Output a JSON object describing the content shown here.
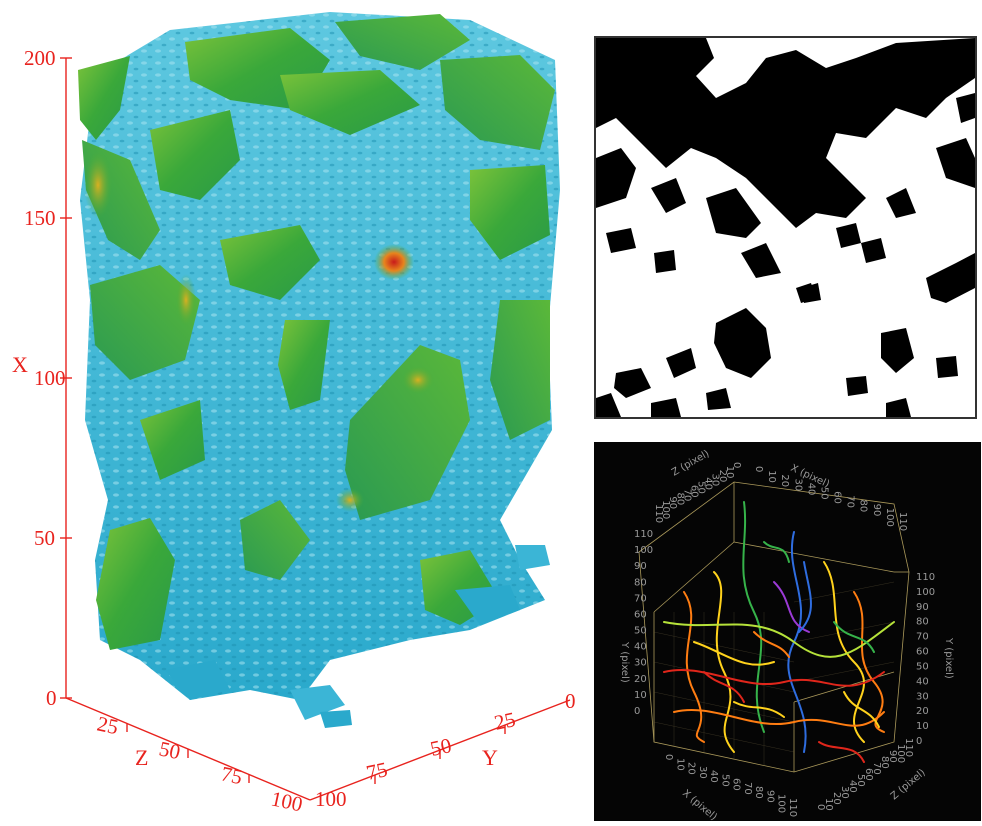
{
  "volume_render": {
    "axes": {
      "x": {
        "label": "X",
        "ticks": [
          "200",
          "150",
          "100",
          "50",
          "0"
        ]
      },
      "z": {
        "label": "Z",
        "ticks": [
          "25",
          "50",
          "75",
          "100"
        ]
      },
      "y": {
        "label": "Y",
        "ticks": [
          "0",
          "25",
          "50",
          "75",
          "100"
        ]
      }
    },
    "colors": {
      "axis": "#e8231e",
      "low": "#2ab7d9",
      "mid": "#3fae3a",
      "high": "#d8261e"
    }
  },
  "binary_slice": {
    "colors": {
      "solid": "#000000",
      "pore": "#ffffff"
    }
  },
  "pore_network": {
    "axes": {
      "x": {
        "label": "X (pixel)",
        "ticks": [
          "0",
          "10",
          "20",
          "30",
          "40",
          "50",
          "60",
          "70",
          "80",
          "90",
          "100",
          "110"
        ]
      },
      "y": {
        "label": "Y (pixel)",
        "ticks": [
          "0",
          "10",
          "20",
          "30",
          "40",
          "50",
          "60",
          "70",
          "80",
          "90",
          "100",
          "110"
        ]
      },
      "z": {
        "label": "Z (pixel)",
        "ticks": [
          "0",
          "10",
          "20",
          "30",
          "40",
          "50",
          "60",
          "70",
          "80",
          "90",
          "100",
          "110"
        ]
      }
    },
    "colors": {
      "background": "#050505",
      "box": "#c9b46a",
      "segments": [
        "#e0261b",
        "#ff7d12",
        "#ffd21c",
        "#b6e23a",
        "#36b34a",
        "#2f6de0",
        "#9b3ad6"
      ]
    }
  }
}
